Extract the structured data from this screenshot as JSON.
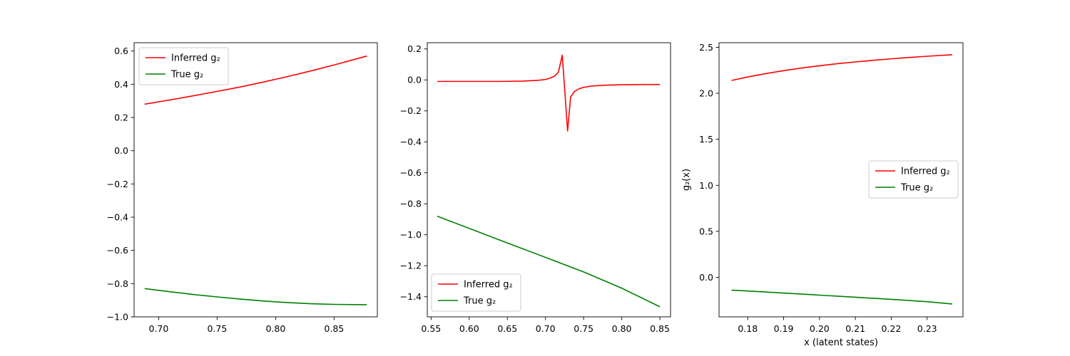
{
  "chart_data": [
    {
      "type": "line",
      "xlim": [
        0.679,
        0.887
      ],
      "ylim": [
        -1.0,
        0.65
      ],
      "xticks": [
        "0.70",
        "0.75",
        "0.80",
        "0.85"
      ],
      "yticks": [
        "0.6",
        "0.4",
        "0.2",
        "0.0",
        "−0.2",
        "−0.4",
        "−0.6",
        "−0.8",
        "−1.0"
      ],
      "xlabel": "",
      "ylabel": "",
      "legend": "upper-left",
      "series": [
        {
          "name": "Inferred g₂",
          "color": "#ff0000",
          "x": [
            0.688,
            0.71,
            0.73,
            0.75,
            0.77,
            0.79,
            0.81,
            0.83,
            0.85,
            0.878
          ],
          "y": [
            0.28,
            0.306,
            0.331,
            0.357,
            0.384,
            0.414,
            0.446,
            0.48,
            0.516,
            0.57
          ]
        },
        {
          "name": "True g₂",
          "color": "#008000",
          "x": [
            0.688,
            0.71,
            0.73,
            0.75,
            0.77,
            0.79,
            0.81,
            0.83,
            0.85,
            0.878
          ],
          "y": [
            -0.83,
            -0.849,
            -0.866,
            -0.88,
            -0.893,
            -0.905,
            -0.914,
            -0.921,
            -0.925,
            -0.927
          ]
        }
      ]
    },
    {
      "type": "line",
      "xlim": [
        0.545,
        0.864
      ],
      "ylim": [
        -1.53,
        0.24
      ],
      "xticks": [
        "0.55",
        "0.60",
        "0.65",
        "0.70",
        "0.75",
        "0.80",
        "0.85"
      ],
      "yticks": [
        "0.2",
        "0.0",
        "−0.2",
        "−0.4",
        "−0.6",
        "−0.8",
        "−1.0",
        "−1.2",
        "−1.4"
      ],
      "xlabel": "",
      "ylabel": "",
      "legend": "lower-left",
      "series": [
        {
          "name": "Inferred g₂",
          "color": "#ff0000",
          "x": [
            0.558,
            0.6,
            0.64,
            0.67,
            0.69,
            0.7,
            0.706,
            0.712,
            0.717,
            0.722,
            0.729,
            0.733,
            0.738,
            0.743,
            0.75,
            0.76,
            0.775,
            0.8,
            0.825,
            0.85
          ],
          "y": [
            -0.01,
            -0.01,
            -0.01,
            -0.008,
            -0.003,
            0.003,
            0.012,
            0.024,
            0.05,
            0.16,
            -0.33,
            -0.11,
            -0.075,
            -0.06,
            -0.048,
            -0.04,
            -0.035,
            -0.031,
            -0.03,
            -0.03
          ]
        },
        {
          "name": "True g₂",
          "color": "#008000",
          "x": [
            0.558,
            0.6,
            0.65,
            0.7,
            0.75,
            0.8,
            0.85
          ],
          "y": [
            -0.88,
            -0.959,
            -1.053,
            -1.146,
            -1.24,
            -1.345,
            -1.465
          ]
        }
      ]
    },
    {
      "type": "line",
      "xlim": [
        0.172,
        0.24
      ],
      "ylim": [
        -0.43,
        2.55
      ],
      "xticks": [
        "0.18",
        "0.19",
        "0.20",
        "0.21",
        "0.22",
        "0.23"
      ],
      "yticks": [
        "2.5",
        "2.0",
        "1.5",
        "1.0",
        "0.5",
        "0.0"
      ],
      "xlabel": "x (latent states)",
      "ylabel": "g₂(x)",
      "legend": "center-right",
      "series": [
        {
          "name": "Inferred g₂",
          "color": "#ff0000",
          "x": [
            0.1755,
            0.18,
            0.185,
            0.19,
            0.195,
            0.2,
            0.205,
            0.21,
            0.215,
            0.22,
            0.225,
            0.23,
            0.237
          ],
          "y": [
            2.14,
            2.178,
            2.214,
            2.247,
            2.275,
            2.3,
            2.322,
            2.341,
            2.359,
            2.375,
            2.39,
            2.403,
            2.42
          ]
        },
        {
          "name": "True g₂",
          "color": "#008000",
          "x": [
            0.1755,
            0.18,
            0.19,
            0.2,
            0.21,
            0.22,
            0.23,
            0.237
          ],
          "y": [
            -0.14,
            -0.149,
            -0.171,
            -0.194,
            -0.217,
            -0.24,
            -0.265,
            -0.29
          ]
        }
      ]
    }
  ]
}
